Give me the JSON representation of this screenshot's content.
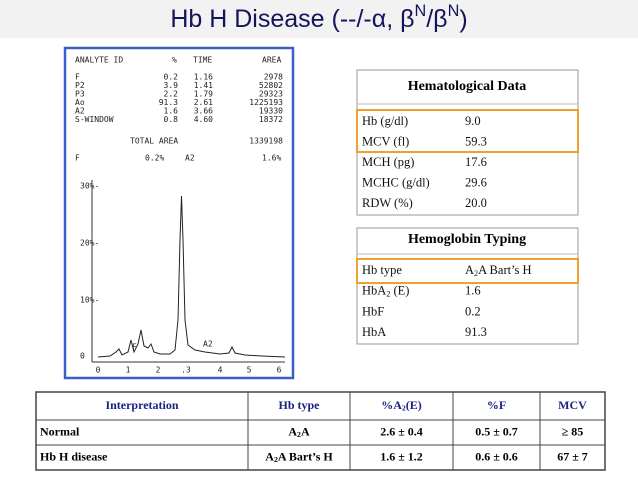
{
  "title": [
    "Hb H Disease (--/-α, β",
    "N",
    "/β",
    "N",
    ")"
  ],
  "report": {
    "header": [
      "ANALYTE ID",
      "%",
      "TIME",
      "AREA"
    ],
    "rows": [
      [
        "F",
        "0.2",
        "1.16",
        "2978"
      ],
      [
        "P2",
        "3.9",
        "1.41",
        "52802"
      ],
      [
        "P3",
        "2.2",
        "1.79",
        "29323"
      ],
      [
        "Ao",
        "91.3",
        "2.61",
        "1225193"
      ],
      [
        "A2",
        "1.6",
        "3.66",
        "19330"
      ],
      [
        "S-WINDOW",
        "0.8",
        "4.60",
        "18372"
      ]
    ],
    "total_label": "TOTAL AREA",
    "total": "1339198",
    "summary": [
      "F",
      "0.2%",
      "A2",
      "1.6%"
    ],
    "yticks": [
      "30%-",
      "20%-",
      "10%-",
      "0"
    ],
    "xticks": [
      "0",
      "1",
      "2",
      ".3",
      "4",
      "5",
      "6"
    ],
    "peaks": [
      "F",
      "A2"
    ]
  },
  "hematological": {
    "title": "Hematological Data",
    "rows": [
      [
        "Hb (g/dl)",
        "9.0"
      ],
      [
        "MCV (fl)",
        "59.3"
      ],
      [
        "MCH (pg)",
        "17.6"
      ],
      [
        "MCHC (g/dl)",
        "29.6"
      ],
      [
        "RDW (%)",
        "20.0"
      ]
    ]
  },
  "typing": {
    "title": "Hemoglobin Typing",
    "rows": [
      [
        "Hb type",
        [
          "A",
          "2",
          "A Bart’s H"
        ]
      ],
      [
        [
          "HbA",
          "2",
          " (E)"
        ],
        "1.6"
      ],
      [
        "HbF",
        "0.2"
      ],
      [
        "HbA",
        "91.3"
      ]
    ]
  },
  "table": {
    "header": [
      "Interpretation",
      "Hb type",
      [
        "%A",
        "2",
        "(E)"
      ],
      "%F",
      "MCV"
    ],
    "rows": [
      [
        "Normal",
        [
          "A",
          "2",
          "A"
        ],
        "2.6 ±  0.4",
        "0.5 ±  0.7",
        "≥ 85"
      ],
      [
        "Hb H disease",
        [
          "A",
          "2",
          "A Bart’s H"
        ],
        "1.6 ± 1.2",
        "0.6 ± 0.6",
        "67 ± 7"
      ]
    ]
  }
}
